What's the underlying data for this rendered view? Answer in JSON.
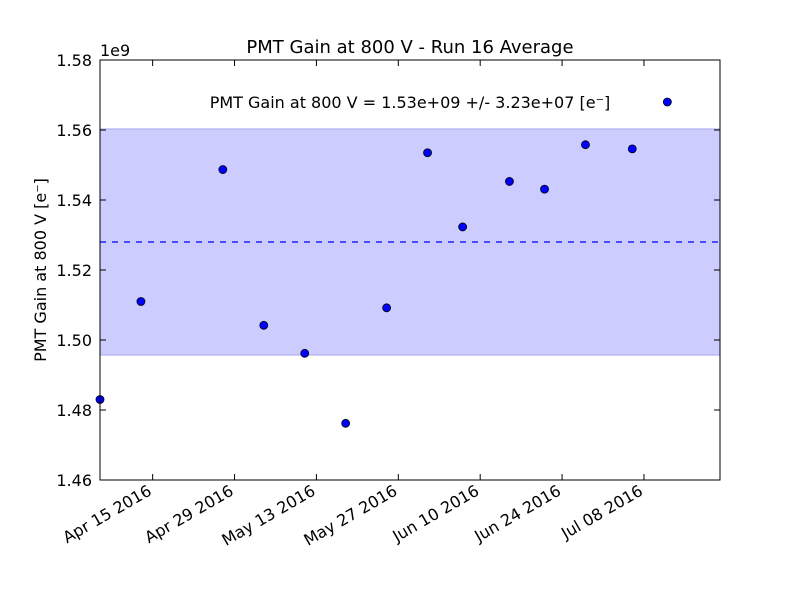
{
  "chart_data": {
    "type": "scatter",
    "title": "PMT Gain at 800 V - Run 16 Average",
    "ylabel": "PMT Gain at 800 V [e⁻]",
    "xlabel": "",
    "y_multiplier": "1e9",
    "annotation": "PMT Gain at 800 V = 1.53e+09 +/- 3.23e+07 [e⁻]",
    "xlim": [
      "2016-04-06",
      "2016-07-21"
    ],
    "ylim": [
      1.46,
      1.58
    ],
    "yticks": [
      1.46,
      1.48,
      1.5,
      1.52,
      1.54,
      1.56,
      1.58
    ],
    "ytick_labels": [
      "1.46",
      "1.48",
      "1.50",
      "1.52",
      "1.54",
      "1.56",
      "1.58"
    ],
    "xticks": [
      "2016-04-15",
      "2016-04-29",
      "2016-05-13",
      "2016-05-27",
      "2016-06-10",
      "2016-06-24",
      "2016-07-08"
    ],
    "xtick_labels": [
      "Apr 15 2016",
      "Apr 29 2016",
      "May 13 2016",
      "May 27 2016",
      "Jun 10 2016",
      "Jun 24 2016",
      "Jul 08 2016"
    ],
    "mean": 1.528,
    "band": [
      1.4957,
      1.5603
    ],
    "colors": {
      "points": "#0000ff",
      "band": "#ccccff",
      "mean_line": "#0000ff"
    },
    "grid": false,
    "series": [
      {
        "x": [
          "2016-04-06",
          "2016-04-13",
          "2016-04-27",
          "2016-05-04",
          "2016-05-11",
          "2016-05-18",
          "2016-05-25",
          "2016-06-01",
          "2016-06-07",
          "2016-06-15",
          "2016-06-21",
          "2016-06-28",
          "2016-07-06",
          "2016-07-12"
        ],
        "y": [
          1.483,
          1.511,
          1.5487,
          1.5042,
          1.4962,
          1.4762,
          1.5092,
          1.5535,
          1.5323,
          1.5453,
          1.5431,
          1.5558,
          1.5546,
          1.568
        ]
      }
    ]
  }
}
